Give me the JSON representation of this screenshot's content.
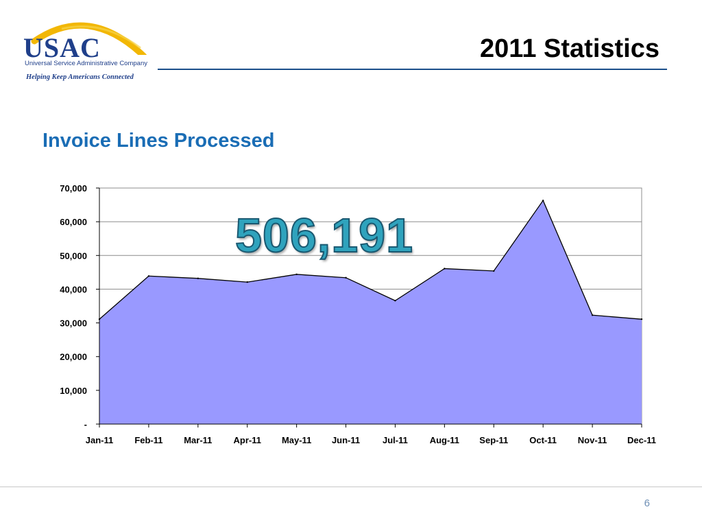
{
  "header": {
    "logo_text": "USAC",
    "logo_company": "Universal Service Administrative Company",
    "tagline": "Helping Keep Americans Connected",
    "title": "2011 Statistics"
  },
  "subtitle": "Invoice Lines Processed",
  "highlight_total": "506,191",
  "footer": {
    "page_number": "6"
  },
  "colors": {
    "brand_blue": "#1f3f8a",
    "arc_gold": "#f2b705",
    "subtitle_blue": "#1a6db5",
    "area_fill": "#9999ff",
    "total_teal": "#2fa3bd"
  },
  "chart_data": {
    "type": "area",
    "title": "",
    "xlabel": "",
    "ylabel": "",
    "categories": [
      "Jan-11",
      "Feb-11",
      "Mar-11",
      "Apr-11",
      "May-11",
      "Jun-11",
      "Jul-11",
      "Aug-11",
      "Sep-11",
      "Oct-11",
      "Nov-11",
      "Dec-11"
    ],
    "series": [
      {
        "values": [
          31100,
          43900,
          43200,
          42100,
          44400,
          43400,
          36600,
          46100,
          45400,
          66300,
          32300,
          31100
        ]
      }
    ],
    "ylim": [
      0,
      70000
    ],
    "y_ticks": [
      0,
      10000,
      20000,
      30000,
      40000,
      50000,
      60000,
      70000
    ],
    "y_tick_labels": [
      "-",
      "10,000",
      "20,000",
      "30,000",
      "40,000",
      "50,000",
      "60,000",
      "70,000"
    ],
    "grid": true,
    "legend": "none"
  }
}
